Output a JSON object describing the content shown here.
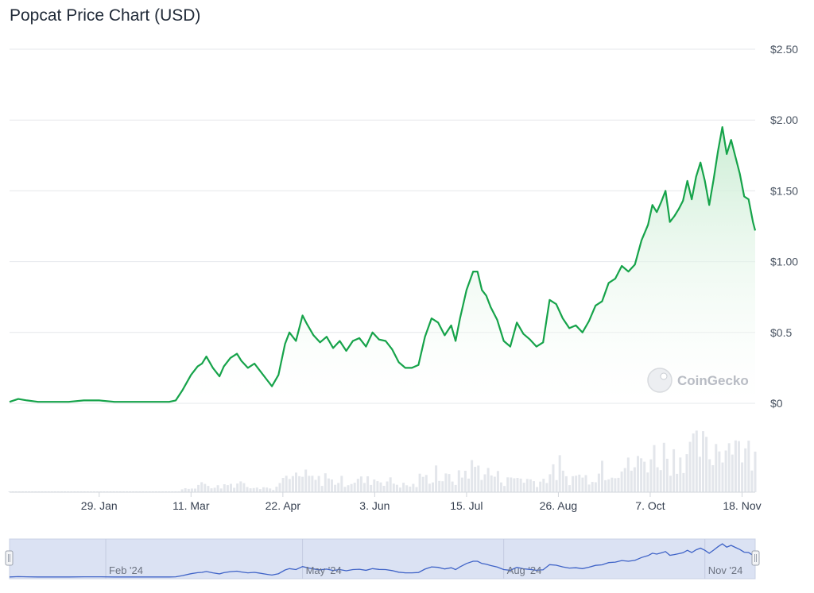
{
  "title": "Popcat Price Chart (USD)",
  "watermark": "CoinGecko",
  "colors": {
    "line": "#16a34a",
    "fill_top": "#c9ecd2",
    "grid": "#e5e7eb",
    "volume": "#e3e6eb",
    "navigator_bg": "#dbe2f3",
    "navigator_line": "#3f63c7"
  },
  "chart_data": {
    "type": "area",
    "title": "Popcat Price Chart (USD)",
    "ylim": [
      0,
      2.5
    ],
    "y_ticks": [
      "$2.50",
      "$2.00",
      "$1.50",
      "$1.00",
      "$0.5",
      "$0"
    ],
    "y_tick_values": [
      2.5,
      2.0,
      1.5,
      1.0,
      0.5,
      0
    ],
    "x_ticks": [
      "29. Jan",
      "11. Mar",
      "22. Apr",
      "3. Jun",
      "15. Jul",
      "26. Aug",
      "7. Oct",
      "18. Nov"
    ],
    "x_tick_dates": [
      "2024-01-29",
      "2024-03-11",
      "2024-04-22",
      "2024-06-03",
      "2024-07-15",
      "2024-08-26",
      "2024-10-07",
      "2024-11-18"
    ],
    "x_range": [
      "2023-12-19",
      "2024-11-24"
    ],
    "grid": true,
    "series": [
      {
        "x": [
          "2023-12-19",
          "2023-12-23",
          "2023-12-27",
          "2024-01-01",
          "2024-01-08",
          "2024-01-15",
          "2024-01-22",
          "2024-01-29",
          "2024-02-05",
          "2024-02-12",
          "2024-02-19",
          "2024-02-26",
          "2024-03-01",
          "2024-03-04",
          "2024-03-07",
          "2024-03-11",
          "2024-03-14",
          "2024-03-16",
          "2024-03-18",
          "2024-03-21",
          "2024-03-24",
          "2024-03-26",
          "2024-03-29",
          "2024-04-01",
          "2024-04-03",
          "2024-04-06",
          "2024-04-09",
          "2024-04-11",
          "2024-04-15",
          "2024-04-17",
          "2024-04-20",
          "2024-04-23",
          "2024-04-25",
          "2024-04-28",
          "2024-05-01",
          "2024-05-03",
          "2024-05-06",
          "2024-05-09",
          "2024-05-12",
          "2024-05-15",
          "2024-05-18",
          "2024-05-21",
          "2024-05-24",
          "2024-05-27",
          "2024-05-30",
          "2024-06-02",
          "2024-06-05",
          "2024-06-08",
          "2024-06-11",
          "2024-06-14",
          "2024-06-17",
          "2024-06-20",
          "2024-06-23",
          "2024-06-26",
          "2024-06-29",
          "2024-07-02",
          "2024-07-05",
          "2024-07-08",
          "2024-07-10",
          "2024-07-12",
          "2024-07-15",
          "2024-07-18",
          "2024-07-20",
          "2024-07-22",
          "2024-07-24",
          "2024-07-26",
          "2024-07-29",
          "2024-08-01",
          "2024-08-04",
          "2024-08-07",
          "2024-08-10",
          "2024-08-13",
          "2024-08-16",
          "2024-08-19",
          "2024-08-22",
          "2024-08-25",
          "2024-08-28",
          "2024-08-31",
          "2024-09-03",
          "2024-09-06",
          "2024-09-09",
          "2024-09-12",
          "2024-09-15",
          "2024-09-18",
          "2024-09-21",
          "2024-09-24",
          "2024-09-27",
          "2024-09-30",
          "2024-10-03",
          "2024-10-06",
          "2024-10-08",
          "2024-10-10",
          "2024-10-12",
          "2024-10-14",
          "2024-10-16",
          "2024-10-18",
          "2024-10-20",
          "2024-10-22",
          "2024-10-24",
          "2024-10-26",
          "2024-10-28",
          "2024-10-30",
          "2024-11-01",
          "2024-11-03",
          "2024-11-05",
          "2024-11-07",
          "2024-11-09",
          "2024-11-11",
          "2024-11-13",
          "2024-11-15",
          "2024-11-17",
          "2024-11-19",
          "2024-11-21",
          "2024-11-23",
          "2024-11-24"
        ],
        "y": [
          0.01,
          0.03,
          0.02,
          0.01,
          0.01,
          0.01,
          0.02,
          0.02,
          0.01,
          0.01,
          0.01,
          0.01,
          0.01,
          0.02,
          0.09,
          0.2,
          0.26,
          0.28,
          0.33,
          0.25,
          0.19,
          0.26,
          0.32,
          0.35,
          0.3,
          0.25,
          0.28,
          0.24,
          0.16,
          0.12,
          0.2,
          0.42,
          0.5,
          0.44,
          0.62,
          0.56,
          0.48,
          0.43,
          0.47,
          0.39,
          0.44,
          0.37,
          0.44,
          0.46,
          0.4,
          0.5,
          0.45,
          0.44,
          0.38,
          0.29,
          0.25,
          0.25,
          0.27,
          0.47,
          0.6,
          0.57,
          0.48,
          0.55,
          0.44,
          0.6,
          0.8,
          0.93,
          0.93,
          0.8,
          0.76,
          0.68,
          0.59,
          0.44,
          0.4,
          0.57,
          0.49,
          0.45,
          0.4,
          0.43,
          0.73,
          0.7,
          0.6,
          0.53,
          0.55,
          0.5,
          0.58,
          0.69,
          0.72,
          0.85,
          0.88,
          0.97,
          0.93,
          0.98,
          1.15,
          1.26,
          1.4,
          1.35,
          1.42,
          1.5,
          1.28,
          1.32,
          1.37,
          1.43,
          1.57,
          1.44,
          1.6,
          1.7,
          1.57,
          1.4,
          1.58,
          1.78,
          1.95,
          1.76,
          1.86,
          1.74,
          1.62,
          1.46,
          1.44,
          1.28,
          1.22
        ]
      }
    ]
  },
  "navigator": {
    "ticks": [
      "Feb '24",
      "May '24",
      "Aug '24",
      "Nov '24"
    ],
    "tick_dates": [
      "2024-02-01",
      "2024-05-01",
      "2024-08-01",
      "2024-11-01"
    ]
  }
}
